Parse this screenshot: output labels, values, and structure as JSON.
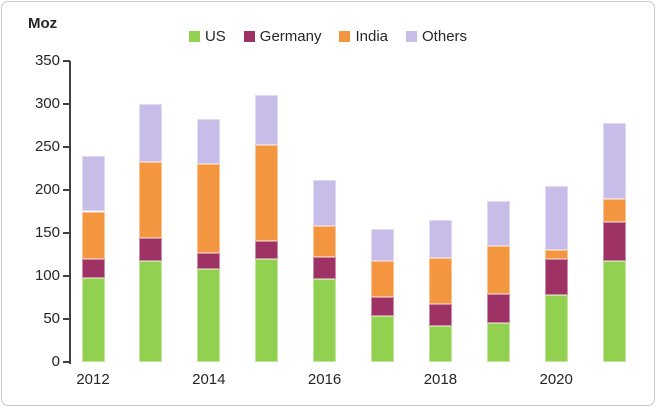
{
  "unit_label": "Moz",
  "colors": {
    "us_green": "#92D050",
    "germany_maroon": "#9E3265",
    "india_orange": "#F4953F",
    "others_purple": "#C8BDE8",
    "axis": "#404040",
    "text": "#262626",
    "frame_border": "#C9C9C9",
    "background": "#FFFFFF"
  },
  "chart_data": {
    "type": "bar",
    "stacked": true,
    "unit": "Moz",
    "categories": [
      "2012",
      "2013",
      "2014",
      "2015",
      "2016",
      "2017",
      "2018",
      "2019",
      "2020",
      "2021"
    ],
    "x_tick_labels": [
      "2012",
      "2014",
      "2016",
      "2018",
      "2020"
    ],
    "x_label_every": 2,
    "series": [
      {
        "name": "US",
        "color": "#92D050",
        "values": [
          98,
          118,
          108,
          120,
          97,
          54,
          42,
          45,
          78,
          117
        ]
      },
      {
        "name": "Germany",
        "color": "#9E3265",
        "values": [
          22,
          26,
          19,
          21,
          25,
          22,
          25,
          34,
          42,
          46
        ]
      },
      {
        "name": "India",
        "color": "#F4953F",
        "values": [
          55,
          89,
          103,
          111,
          36,
          41,
          54,
          56,
          10,
          27
        ]
      },
      {
        "name": "Others",
        "color": "#C8BDE8",
        "values": [
          65,
          67,
          53,
          58,
          54,
          38,
          44,
          52,
          75,
          88
        ]
      }
    ],
    "totals": [
      240,
      300,
      283,
      310,
      212,
      155,
      165,
      187,
      205,
      278
    ],
    "ylim": [
      0,
      350
    ],
    "y_ticks": [
      0,
      50,
      100,
      150,
      200,
      250,
      300,
      350
    ],
    "legend_position": "top",
    "grid": false
  }
}
